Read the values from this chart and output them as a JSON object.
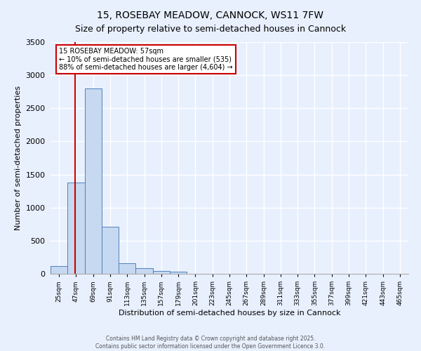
{
  "title": "15, ROSEBAY MEADOW, CANNOCK, WS11 7FW",
  "subtitle": "Size of property relative to semi-detached houses in Cannock",
  "xlabel": "Distribution of semi-detached houses by size in Cannock",
  "ylabel": "Number of semi-detached properties",
  "bin_labels": [
    "25sqm",
    "47sqm",
    "69sqm",
    "91sqm",
    "113sqm",
    "135sqm",
    "157sqm",
    "179sqm",
    "201sqm",
    "223sqm",
    "245sqm",
    "267sqm",
    "289sqm",
    "311sqm",
    "333sqm",
    "355sqm",
    "377sqm",
    "399sqm",
    "421sqm",
    "443sqm",
    "465sqm"
  ],
  "bin_left_edges": [
    25,
    47,
    69,
    91,
    113,
    135,
    157,
    179,
    201,
    223,
    245,
    267,
    289,
    311,
    333,
    355,
    377,
    399,
    421,
    443,
    465
  ],
  "bin_width": 22,
  "bar_heights": [
    120,
    1380,
    2800,
    710,
    155,
    80,
    45,
    35,
    0,
    0,
    0,
    0,
    0,
    0,
    0,
    0,
    0,
    0,
    0,
    0,
    0
  ],
  "bar_color": "#c6d9f0",
  "bar_edge_color": "#4f81bd",
  "property_line_x": 57,
  "property_line_color": "#cc0000",
  "ylim": [
    0,
    3500
  ],
  "xlim": [
    25,
    487
  ],
  "annotation_text": "15 ROSEBAY MEADOW: 57sqm\n← 10% of semi-detached houses are smaller (535)\n88% of semi-detached houses are larger (4,604) →",
  "annotation_box_color": "#cc0000",
  "annotation_facecolor": "#ffffff",
  "bg_color": "#e8f0fe",
  "plot_bg_color": "#e8f0fe",
  "grid_color": "#ffffff",
  "title_fontsize": 10,
  "subtitle_fontsize": 9,
  "footer_line1": "Contains HM Land Registry data © Crown copyright and database right 2025.",
  "footer_line2": "Contains public sector information licensed under the Open Government Licence 3.0."
}
